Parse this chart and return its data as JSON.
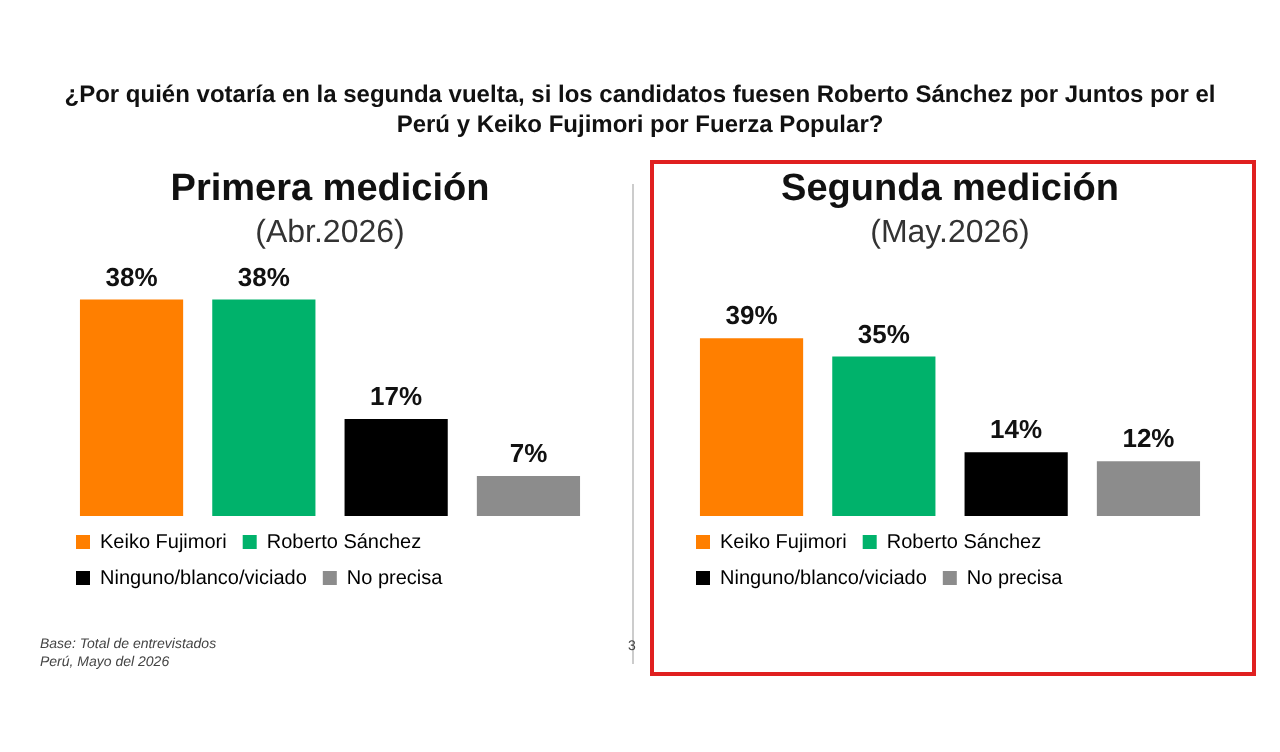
{
  "chart_data": [
    {
      "type": "bar",
      "title": "Primera medición",
      "subtitle": "(Abr.2026)",
      "categories": [
        null
      ],
      "series": [
        {
          "name": "Keiko Fujimori",
          "color": "#ff7f00",
          "values": [
            38
          ],
          "value_labels": [
            "38%"
          ]
        },
        {
          "name": "Roberto Sánchez",
          "color": "#00b26b",
          "values": [
            38
          ],
          "value_labels": [
            "38%"
          ]
        },
        {
          "name": "Ninguno/blanco/viciado",
          "color": "#000000",
          "values": [
            17
          ],
          "value_labels": [
            "17%"
          ]
        },
        {
          "name": "No precisa",
          "color": "#8c8c8c",
          "values": [
            7
          ],
          "value_labels": [
            "7%"
          ]
        }
      ],
      "legend": "bottom",
      "tick_labels": false,
      "annotations": [
        "¿Por quién votaría en la segunda vuelta, si los candidatos fuesen Roberto Sánchez por Juntos por el Perú y Keiko Fujimori por Fuerza Popular?",
        "Base: Total de entrevistados",
        "Perú, Mayo del 2026",
        "3"
      ]
    },
    {
      "type": "bar",
      "title": "Segunda medición",
      "subtitle": "(May.2026)",
      "categories": [
        null
      ],
      "series": [
        {
          "name": "Keiko Fujimori",
          "color": "#ff7f00",
          "values": [
            39
          ],
          "value_labels": [
            "39%"
          ]
        },
        {
          "name": "Roberto Sánchez",
          "color": "#00b26b",
          "values": [
            35
          ],
          "value_labels": [
            "35%"
          ]
        },
        {
          "name": "Ninguno/blanco/viciado",
          "color": "#000000",
          "values": [
            14
          ],
          "value_labels": [
            "14%"
          ]
        },
        {
          "name": "No precisa",
          "color": "#8c8c8c",
          "values": [
            12
          ],
          "value_labels": [
            "12%"
          ]
        }
      ],
      "legend": "bottom",
      "tick_labels": false
    }
  ]
}
